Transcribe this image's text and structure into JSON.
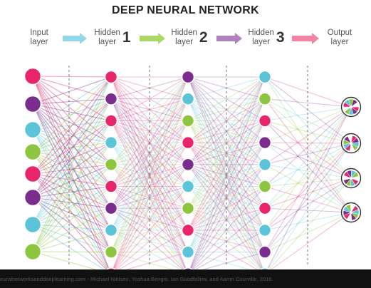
{
  "title": "DEEP NEURAL NETWORK",
  "layers": [
    {
      "label": "Input\nlayer",
      "number": ""
    },
    {
      "label": "Hidden\nlayer",
      "number": "1"
    },
    {
      "label": "Hidden\nlayer",
      "number": "2"
    },
    {
      "label": "Hidden\nlayer",
      "number": "3"
    },
    {
      "label": "Output\nlayer",
      "number": ""
    }
  ],
  "citation": "euralnetworksanddeeplearning.com - Michael Nielsen, Yoshua Bengio, Ian Goodfellow, and Aaron Courville, 2016.",
  "colors": {
    "magenta": "#e8256b",
    "purple": "#7b2d8e",
    "cyan": "#5bc4d8",
    "green": "#8cc63f",
    "arrow1": "#7fd0e3",
    "arrow2": "#9ed14b",
    "arrow3": "#a36bb2",
    "arrow4": "#f06e96"
  },
  "nodes": {
    "input": [
      "magenta",
      "purple",
      "cyan",
      "green",
      "magenta",
      "purple",
      "cyan",
      "green"
    ],
    "hidden1": [
      "magenta",
      "purple",
      "magenta",
      "cyan",
      "green",
      "magenta",
      "purple",
      "cyan",
      "green",
      "magenta"
    ],
    "hidden2": [
      "purple",
      "cyan",
      "green",
      "magenta",
      "purple",
      "cyan",
      "green",
      "magenta",
      "cyan",
      "purple"
    ],
    "hidden3": [
      "cyan",
      "green",
      "magenta",
      "purple",
      "cyan",
      "green",
      "magenta",
      "cyan",
      "purple",
      "cyan"
    ],
    "output": [
      "pie",
      "pie",
      "pie",
      "pie"
    ]
  }
}
